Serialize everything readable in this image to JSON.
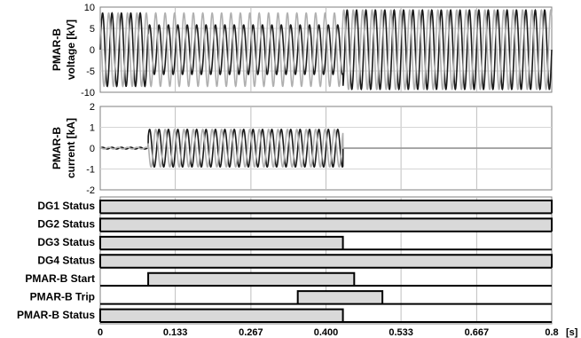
{
  "chart_data": [
    {
      "type": "line",
      "ylabel_line1": "PMAR-B",
      "ylabel_line2": "voltage [kV]",
      "ylim": [
        -10,
        10
      ],
      "yticks": [
        "10",
        "5",
        "0",
        "-5",
        "-10"
      ],
      "ytick_values": [
        10,
        5,
        0,
        -5,
        -10
      ],
      "grid": true,
      "series": [
        {
          "color": "#1a1a1a",
          "amplitude_segments": [
            {
              "t0": 0,
              "t1": 0.085,
              "amp": 8.6
            },
            {
              "t0": 0.085,
              "t1": 0.43,
              "amp": 5.8
            },
            {
              "t0": 0.43,
              "t1": 0.8,
              "amp": 9.3
            }
          ]
        },
        {
          "color": "#b0b0b0",
          "amplitude_segments": [
            {
              "t0": 0,
              "t1": 0.085,
              "amp": 8.6
            },
            {
              "t0": 0.085,
              "t1": 0.43,
              "amp": 8.6
            },
            {
              "t0": 0.43,
              "t1": 0.8,
              "amp": 9.3
            }
          ]
        }
      ]
    },
    {
      "type": "line",
      "ylabel_line1": "PMAR-B",
      "ylabel_line2": "current [kA]",
      "ylim": [
        -2,
        2
      ],
      "yticks": [
        "2",
        "1",
        "0",
        "-1",
        "-2"
      ],
      "ytick_values": [
        2,
        1,
        0,
        -1,
        -2
      ],
      "grid": true,
      "series": [
        {
          "color": "#1a1a1a",
          "amplitude_segments": [
            {
              "t0": 0,
              "t1": 0.085,
              "amp": 0.04
            },
            {
              "t0": 0.085,
              "t1": 0.43,
              "amp": 0.9
            },
            {
              "t0": 0.43,
              "t1": 0.8,
              "amp": 0
            }
          ]
        },
        {
          "color": "#b0b0b0",
          "amplitude_segments": [
            {
              "t0": 0,
              "t1": 0.085,
              "amp": 0.04
            },
            {
              "t0": 0.085,
              "t1": 0.43,
              "amp": 0.9
            },
            {
              "t0": 0.43,
              "t1": 0.8,
              "amp": 0
            }
          ]
        }
      ]
    },
    {
      "type": "bar",
      "orientation": "horizontal",
      "categories": [
        "DG1 Status",
        "DG2 Status",
        "DG3 Status",
        "DG4 Status",
        "PMAR-B Start",
        "PMAR-B Trip",
        "PMAR-B Status"
      ],
      "intervals": [
        {
          "name": "DG1 Status",
          "start": 0,
          "end": 0.8
        },
        {
          "name": "DG2 Status",
          "start": 0,
          "end": 0.8
        },
        {
          "name": "DG3 Status",
          "start": 0,
          "end": 0.43
        },
        {
          "name": "DG4 Status",
          "start": 0,
          "end": 0.8
        },
        {
          "name": "PMAR-B Start",
          "start": 0.085,
          "end": 0.45
        },
        {
          "name": "PMAR-B Trip",
          "start": 0.35,
          "end": 0.5
        },
        {
          "name": "PMAR-B Status",
          "start": 0,
          "end": 0.43
        }
      ],
      "bar_fill": "#d9d9d9",
      "edge_color": "#000000"
    }
  ],
  "xaxis": {
    "xlim": [
      0,
      0.8
    ],
    "ticks": [
      "0",
      "0.133",
      "0.267",
      "0.400",
      "0.533",
      "0.667",
      "0.8"
    ],
    "tick_values": [
      0,
      0.133,
      0.267,
      0.4,
      0.533,
      0.667,
      0.8
    ],
    "unit": "[s]"
  }
}
